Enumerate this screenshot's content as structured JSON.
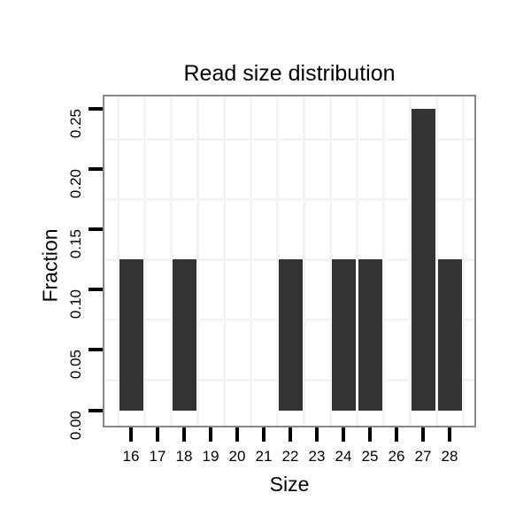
{
  "chart_data": {
    "type": "bar",
    "title": "Read size distribution",
    "xlabel": "Size",
    "ylabel": "Fraction",
    "categories": [
      "16",
      "17",
      "18",
      "19",
      "20",
      "21",
      "22",
      "23",
      "24",
      "25",
      "26",
      "27",
      "28"
    ],
    "values": [
      0.125,
      0,
      0.125,
      0,
      0,
      0,
      0.125,
      0,
      0.125,
      0.125,
      0,
      0.25,
      0.125
    ],
    "ylim": [
      0,
      0.26
    ],
    "ytick_values": [
      0,
      0.05,
      0.1,
      0.15,
      0.2,
      0.25
    ],
    "ytick_labels": [
      "0.00",
      "0.05",
      "0.10",
      "0.15",
      "0.20",
      "0.25"
    ],
    "y_minor_gridlines": [
      0.025,
      0.075,
      0.125,
      0.175,
      0.225
    ],
    "grid": "light gray gridlines at midpoints between ticks (both axes), none at tick positions",
    "legend": "none",
    "bar_color": "#333333"
  },
  "colors": {
    "bar": "#333333",
    "gridline": "#f4f4f4",
    "panel_border": "#898989",
    "tick": "#000000",
    "text": "#000000",
    "background": "#ffffff"
  }
}
